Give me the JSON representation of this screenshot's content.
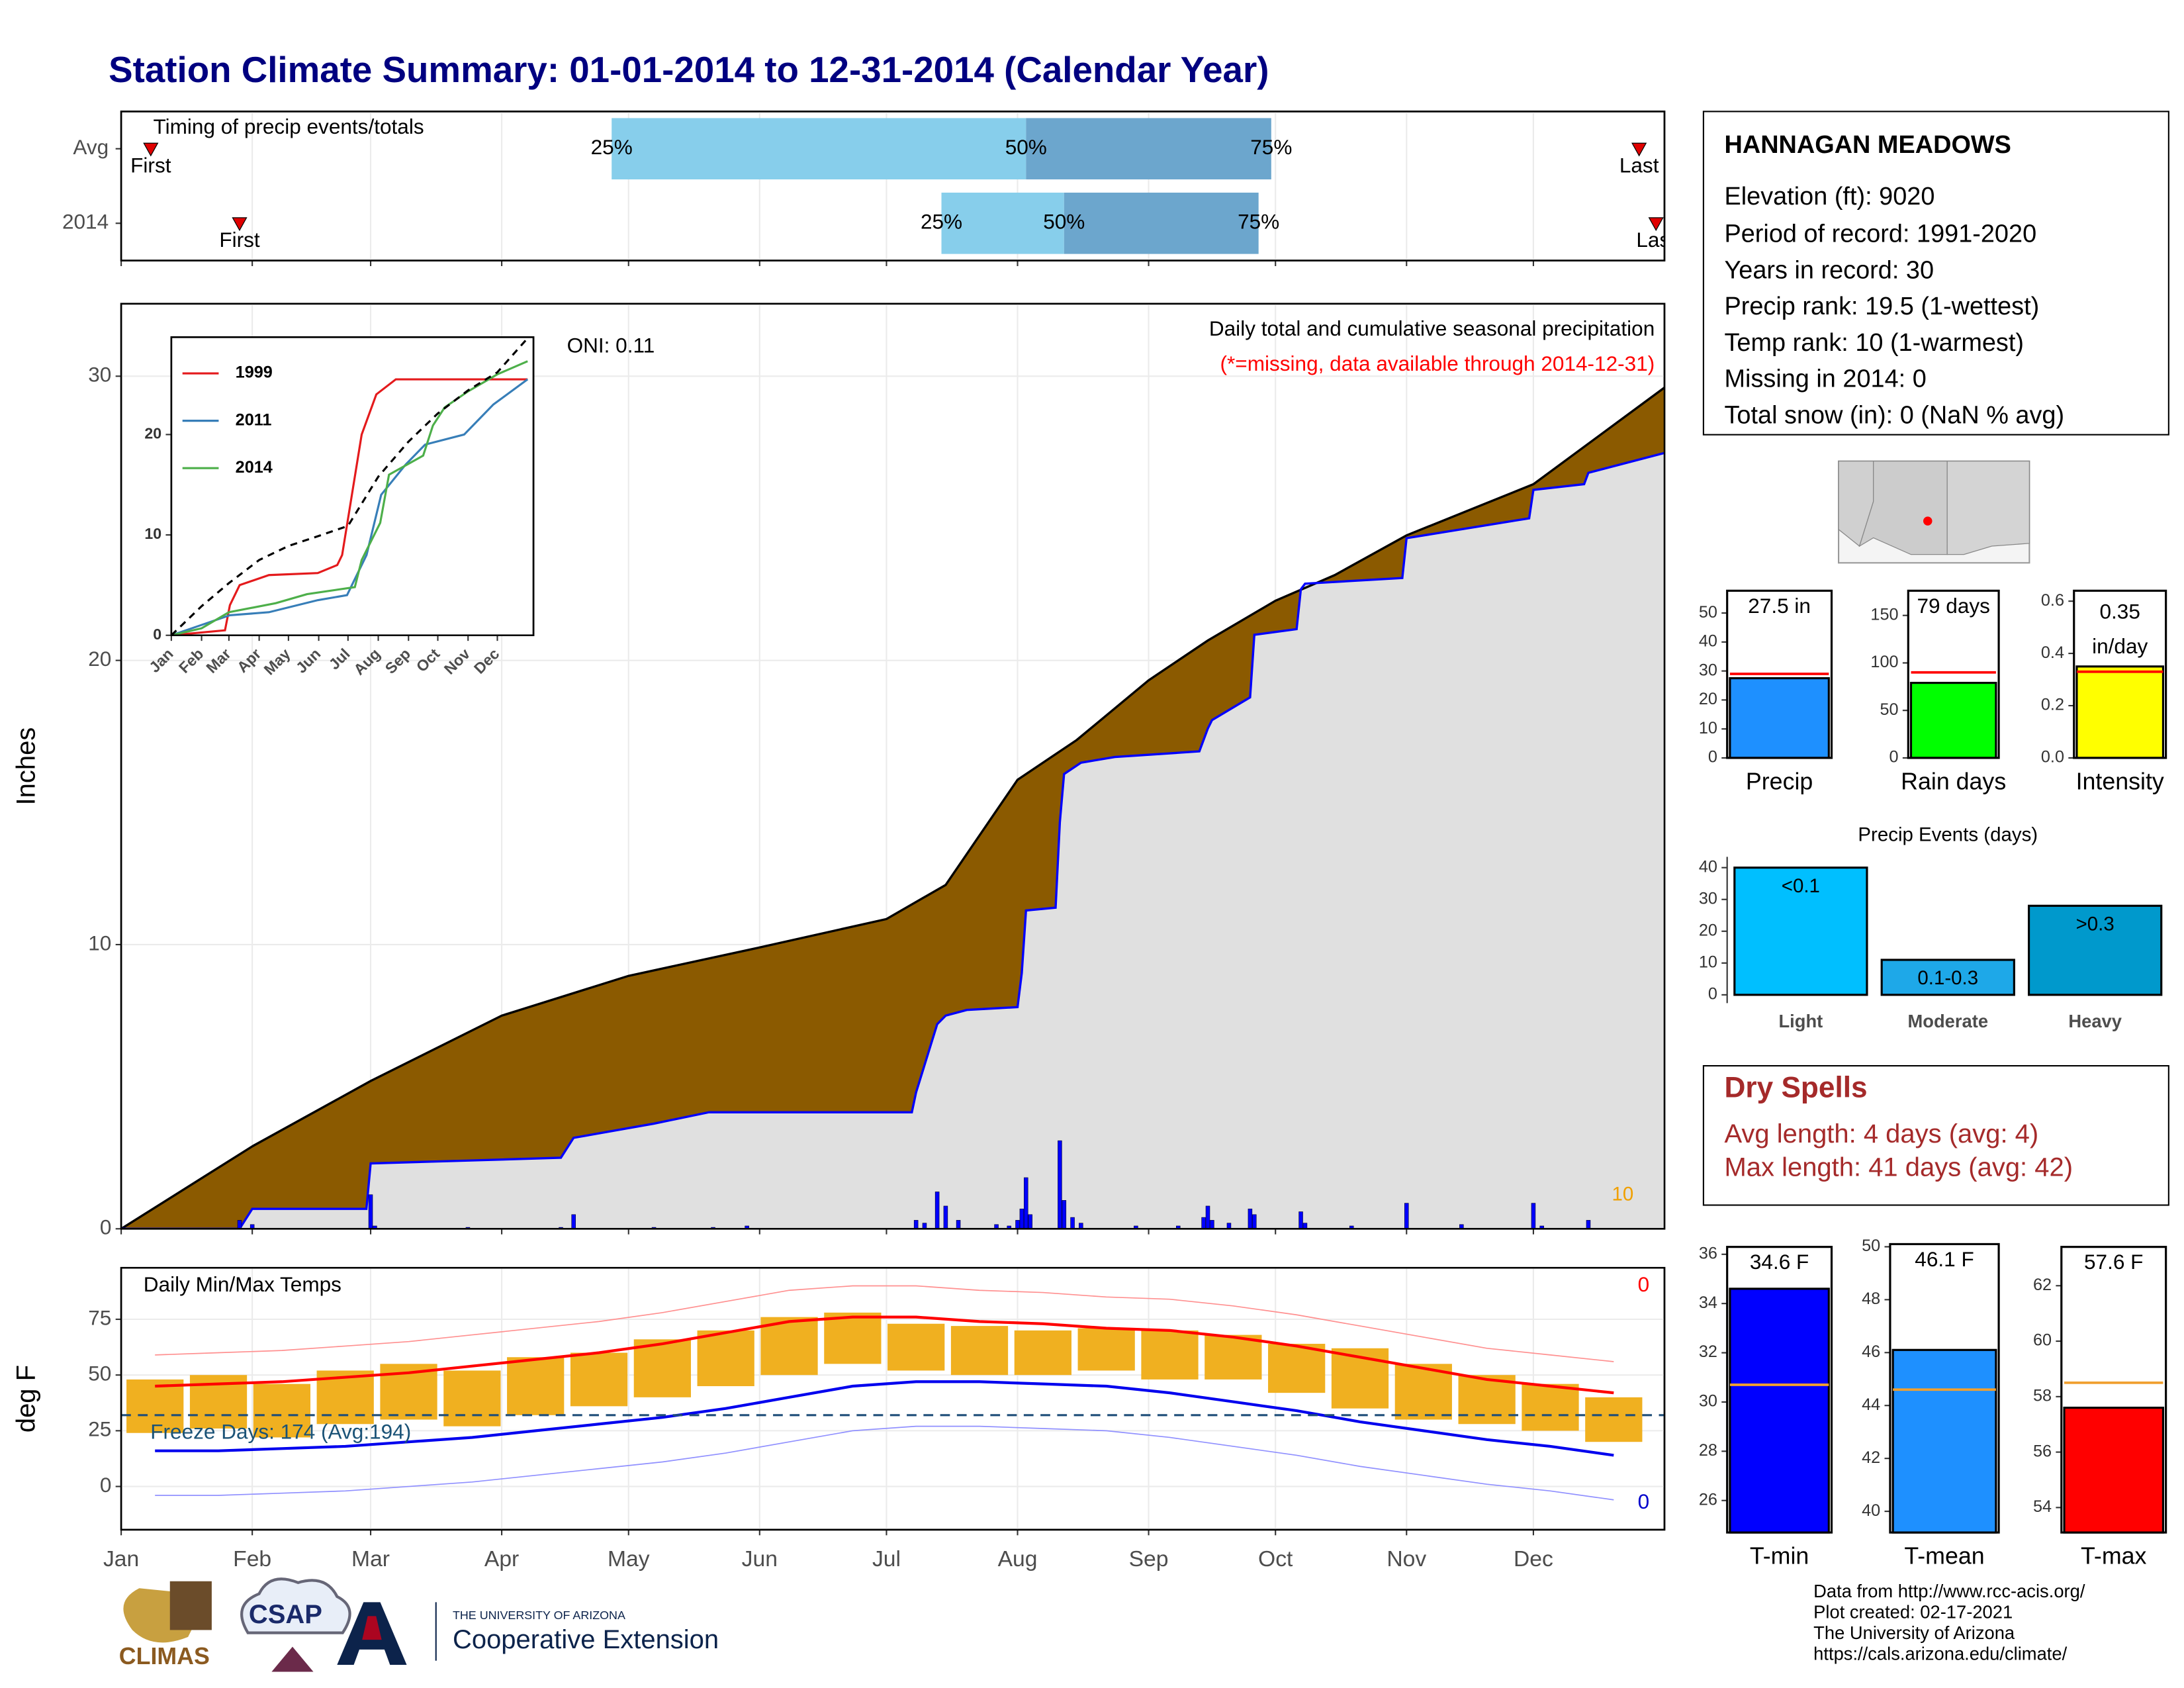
{
  "title": "Station Climate Summary: 01-01-2014 to 12-31-2014 (Calendar Year)",
  "station": {
    "name": "HANNAGAN MEADOWS",
    "lines": [
      "Elevation (ft): 9020",
      "Period of record: 1991-2020",
      "Years in record: 30",
      "Precip rank: 19.5 (1-wettest)",
      "Temp rank: 10 (1-warmest)",
      "Missing in 2014: 0",
      "Total snow (in): 0 (NaN % avg)"
    ]
  },
  "dry_spells": {
    "title": "Dry Spells",
    "lines": [
      "Avg length: 4 days (avg: 4)",
      "Max length: 41 days (avg: 42)"
    ]
  },
  "footer": [
    "Data from http://www.rcc-acis.org/",
    "Plot created: 02-17-2021",
    "The University of Arizona",
    "https://cals.arizona.edu/climate/"
  ],
  "logos": [
    "CLIMAS",
    "CSAP",
    "THE UNIVERSITY OF ARIZONA",
    "Cooperative Extension"
  ],
  "chart_data": [
    {
      "type": "timing",
      "title": "Timing of precip events/totals",
      "categories": [
        "Avg",
        "2014"
      ],
      "labels": [
        "First",
        "25%",
        "50%",
        "75%",
        "Last"
      ],
      "values": [
        [
          7,
          116,
          214,
          272,
          359
        ],
        [
          28,
          194,
          223,
          269,
          363
        ]
      ],
      "colors": [
        "#87ceeb",
        "#6ca6cd"
      ],
      "marker_color": "#e00000",
      "grid": true,
      "xlim": [
        0,
        365
      ],
      "xticks": [
        0,
        31,
        59,
        90,
        120,
        151,
        181,
        212,
        243,
        273,
        304,
        334
      ]
    },
    {
      "type": "area",
      "title": "Daily total and cumulative seasonal precipitation",
      "subtitle": "(*=missing, data available through 2014-12-31)",
      "annotation": "ONI: 0.11",
      "corner_label": "10",
      "ylabel": "Inches",
      "grid": true,
      "xlim": [
        0,
        365
      ],
      "ylim": [
        0,
        32.55
      ],
      "yticks": [
        0,
        10,
        20,
        30
      ],
      "xticks": [
        0,
        31,
        59,
        90,
        120,
        151,
        181,
        212,
        243,
        273,
        304,
        334
      ],
      "series": [
        {
          "color": "#000000",
          "fill": "#8b5a00",
          "x": [
            0,
            31,
            59,
            90,
            120,
            151,
            181,
            195,
            212,
            226,
            243,
            257,
            273,
            287,
            304,
            334,
            365
          ],
          "values": [
            0,
            2.9,
            5.2,
            7.5,
            8.9,
            9.9,
            10.9,
            12.1,
            15.8,
            17.2,
            19.3,
            20.7,
            22.1,
            23.0,
            24.4,
            26.2,
            29.6
          ]
        },
        {
          "color": "#0000ff",
          "fill": "#e0e0e0",
          "x": [
            0,
            28,
            31,
            58,
            59,
            82,
            104,
            107,
            126,
            139,
            187,
            188,
            193,
            195,
            200,
            212,
            213,
            214,
            221,
            222,
            223,
            227,
            235,
            255,
            257,
            258,
            267,
            268,
            278,
            279,
            280,
            303,
            304,
            333,
            334,
            346,
            347,
            365
          ],
          "values": [
            0,
            0,
            0.7,
            0.7,
            2.3,
            2.4,
            2.5,
            3.2,
            3.7,
            4.1,
            4.1,
            4.8,
            7.2,
            7.5,
            7.7,
            7.8,
            9.0,
            11.2,
            11.3,
            14.3,
            16.0,
            16.4,
            16.6,
            16.8,
            17.6,
            17.9,
            18.7,
            20.9,
            21.1,
            22.5,
            22.7,
            22.9,
            24.3,
            25.0,
            26.0,
            26.2,
            26.6,
            27.3
          ]
        }
      ],
      "bars": {
        "color": "#0000ff",
        "x": [
          28,
          31,
          59,
          60,
          82,
          104,
          107,
          126,
          140,
          148,
          188,
          190,
          193,
          195,
          198,
          207,
          210,
          212,
          213,
          214,
          215,
          222,
          223,
          225,
          227,
          240,
          250,
          256,
          257,
          258,
          262,
          267,
          268,
          279,
          280,
          291,
          304,
          317,
          334,
          336,
          347
        ],
        "values": [
          0.3,
          0.15,
          1.2,
          0.1,
          0.05,
          0.05,
          0.5,
          0.05,
          0.05,
          0.1,
          0.3,
          0.2,
          1.3,
          0.8,
          0.3,
          0.15,
          0.1,
          0.3,
          0.7,
          1.8,
          0.5,
          3.1,
          1.0,
          0.4,
          0.2,
          0.1,
          0.1,
          0.4,
          0.8,
          0.3,
          0.2,
          0.7,
          0.5,
          0.6,
          0.2,
          0.1,
          0.9,
          0.15,
          0.9,
          0.1,
          0.3
        ]
      }
    },
    {
      "type": "line",
      "legend": "upper left",
      "xlim": [
        0,
        371
      ],
      "ylim": [
        0,
        29.7
      ],
      "yticks": [
        0,
        10,
        20
      ],
      "xticks": [
        {
          "value": 0,
          "label": "Jan"
        },
        {
          "value": 31,
          "label": "Feb"
        },
        {
          "value": 59,
          "label": "Mar"
        },
        {
          "value": 90,
          "label": "Apr"
        },
        {
          "value": 120,
          "label": "May"
        },
        {
          "value": 151,
          "label": "Jun"
        },
        {
          "value": 181,
          "label": "Jul"
        },
        {
          "value": 212,
          "label": "Aug"
        },
        {
          "value": 243,
          "label": "Sep"
        },
        {
          "value": 273,
          "label": "Oct"
        },
        {
          "value": 304,
          "label": "Nov"
        },
        {
          "value": 334,
          "label": "Dec"
        }
      ],
      "series": [
        {
          "name": "1999",
          "color": "#e41a1c",
          "x": [
            0,
            55,
            60,
            70,
            100,
            150,
            170,
            175,
            185,
            195,
            210,
            230,
            260,
            300,
            365
          ],
          "values": [
            0,
            0.5,
            3,
            5,
            6,
            6.2,
            7,
            8,
            14,
            20,
            24,
            25.5,
            25.5,
            25.5,
            25.5
          ]
        },
        {
          "name": "2011",
          "color": "#377eb8",
          "x": [
            0,
            30,
            60,
            100,
            150,
            180,
            200,
            215,
            240,
            260,
            300,
            330,
            365
          ],
          "values": [
            0,
            1,
            2,
            2.3,
            3.5,
            4,
            8,
            14,
            17,
            19,
            20,
            23,
            25.5
          ]
        },
        {
          "name": "2014",
          "color": "#4daf4a",
          "x": [
            0,
            31,
            59,
            107,
            139,
            188,
            195,
            214,
            223,
            258,
            268,
            280,
            304,
            334,
            365
          ],
          "values": [
            0,
            0.7,
            2.3,
            3.2,
            4.1,
            4.8,
            7.5,
            11.2,
            16.0,
            17.9,
            20.9,
            22.7,
            24.3,
            26.0,
            27.3
          ]
        },
        {
          "color": "#000000",
          "dash": true,
          "x": [
            0,
            31,
            59,
            90,
            120,
            151,
            181,
            212,
            243,
            273,
            304,
            334,
            365
          ],
          "values": [
            0,
            2.9,
            5.2,
            7.5,
            8.9,
            9.9,
            10.9,
            15.8,
            19.3,
            22.1,
            24.4,
            26.2,
            29.6
          ]
        }
      ]
    },
    {
      "type": "temperature",
      "title": "Daily Min/Max Temps",
      "ylabel": "deg F",
      "annotation": "Freeze Days: 174 (Avg:194)",
      "count_labels": [
        "0",
        "0"
      ],
      "freeze": 32,
      "grid": true,
      "xlim": [
        0,
        365
      ],
      "ylim": [
        -19.4,
        98.1
      ],
      "yticks": [
        0,
        25,
        50,
        75
      ],
      "xticks": [
        {
          "value": 0,
          "label": "Jan"
        },
        {
          "value": 31,
          "label": "Feb"
        },
        {
          "value": 59,
          "label": "Mar"
        },
        {
          "value": 90,
          "label": "Apr"
        },
        {
          "value": 120,
          "label": "May"
        },
        {
          "value": 151,
          "label": "Jun"
        },
        {
          "value": 181,
          "label": "Jul"
        },
        {
          "value": 212,
          "label": "Aug"
        },
        {
          "value": 243,
          "label": "Sep"
        },
        {
          "value": 273,
          "label": "Oct"
        },
        {
          "value": 304,
          "label": "Nov"
        },
        {
          "value": 334,
          "label": "Dec"
        }
      ],
      "x": [
        8,
        23,
        38,
        53,
        68,
        83,
        98,
        113,
        128,
        143,
        158,
        173,
        188,
        203,
        218,
        233,
        248,
        263,
        278,
        293,
        308,
        323,
        338,
        353
      ],
      "range": {
        "color": "#f0b020",
        "min": [
          24,
          26,
          22,
          28,
          30,
          27,
          32,
          36,
          40,
          45,
          50,
          55,
          52,
          50,
          50,
          52,
          48,
          48,
          42,
          35,
          30,
          28,
          25,
          20
        ],
        "max": [
          48,
          50,
          46,
          52,
          55,
          52,
          58,
          60,
          66,
          70,
          76,
          78,
          73,
          72,
          70,
          71,
          70,
          68,
          64,
          62,
          55,
          50,
          46,
          40
        ]
      },
      "series": [
        {
          "color": "#ff9090",
          "width": 0.8,
          "values": [
            59,
            60,
            61,
            63,
            65,
            68,
            71,
            74,
            78,
            83,
            88,
            90,
            90,
            88,
            87,
            85,
            84,
            81,
            77,
            72,
            67,
            62,
            59,
            56
          ]
        },
        {
          "color": "#9090ff",
          "width": 0.8,
          "values": [
            -4,
            -4,
            -3,
            -2,
            0,
            2,
            5,
            8,
            11,
            15,
            20,
            25,
            27,
            27,
            26,
            25,
            22,
            18,
            14,
            9,
            5,
            1,
            -2,
            -6
          ]
        },
        {
          "color": "#ff0000",
          "width": 2,
          "values": [
            45,
            46,
            47,
            49,
            51,
            54,
            57,
            60,
            64,
            69,
            74,
            76,
            76,
            74,
            73,
            71,
            70,
            67,
            63,
            58,
            53,
            48,
            45,
            42
          ]
        },
        {
          "color": "#0000ee",
          "width": 2,
          "values": [
            16,
            16,
            17,
            18,
            20,
            22,
            25,
            28,
            31,
            35,
            40,
            45,
            47,
            47,
            46,
            45,
            42,
            38,
            34,
            29,
            25,
            21,
            18,
            14
          ]
        }
      ]
    },
    {
      "type": "bar",
      "categories": [
        "Precip"
      ],
      "values": [
        27.5
      ],
      "value_labels": [
        "27.5 in"
      ],
      "color": "#1e90ff",
      "average": 29,
      "average_color": "#ff0000",
      "ylim": [
        0,
        57.7
      ],
      "yticks": [
        0,
        10,
        20,
        30,
        40,
        50
      ]
    },
    {
      "type": "bar",
      "categories": [
        "Rain days"
      ],
      "values": [
        79
      ],
      "value_labels": [
        "79 days"
      ],
      "color": "#00ff00",
      "average": 90,
      "average_color": "#ff0000",
      "ylim": [
        0,
        176
      ],
      "yticks": [
        0,
        50,
        100,
        150
      ]
    },
    {
      "type": "bar",
      "categories": [
        "Intensity"
      ],
      "values": [
        0.35
      ],
      "value_labels": [
        "0.35"
      ],
      "unit": "in/day",
      "color": "#ffff00",
      "average": 0.33,
      "average_color": "#ff0000",
      "ylim": [
        0,
        0.64
      ],
      "yticks": [
        {
          "value": 0,
          "label": "0.0"
        },
        0.2,
        0.4,
        0.6
      ]
    },
    {
      "type": "bar",
      "title": "Precip Events (days)",
      "categories": [
        "Light",
        "Moderate",
        "Heavy"
      ],
      "values": [
        40,
        11,
        28
      ],
      "ranges": [
        "<0.1",
        "0.1-0.3",
        ">0.3"
      ],
      "colors": [
        "#00bfff",
        "#1ea8e8",
        "#0099cc"
      ],
      "ylim": [
        -2.6,
        43.4
      ],
      "yticks": [
        0,
        10,
        20,
        30,
        40
      ]
    },
    {
      "type": "bar",
      "categories": [
        "T-min"
      ],
      "values": [
        34.6
      ],
      "value_labels": [
        "34.6 F"
      ],
      "color": "#0000ff",
      "average": 30.7,
      "average_color": "#f0a030",
      "ylim": [
        24.7,
        36.3
      ],
      "yticks": [
        26,
        28,
        30,
        32,
        34,
        36
      ]
    },
    {
      "type": "bar",
      "categories": [
        "T-mean"
      ],
      "values": [
        46.1
      ],
      "value_labels": [
        "46.1 F"
      ],
      "color": "#1e90ff",
      "average": 44.6,
      "average_color": "#f0a030",
      "ylim": [
        39.2,
        50.1
      ],
      "yticks": [
        40,
        42,
        44,
        46,
        48,
        50
      ]
    },
    {
      "type": "bar",
      "categories": [
        "T-max"
      ],
      "values": [
        57.6
      ],
      "value_labels": [
        "57.6 F"
      ],
      "color": "#ff0000",
      "average": 58.5,
      "average_color": "#f0a030",
      "ylim": [
        53.1,
        63.4
      ],
      "yticks": [
        54,
        56,
        58,
        60,
        62
      ]
    }
  ]
}
